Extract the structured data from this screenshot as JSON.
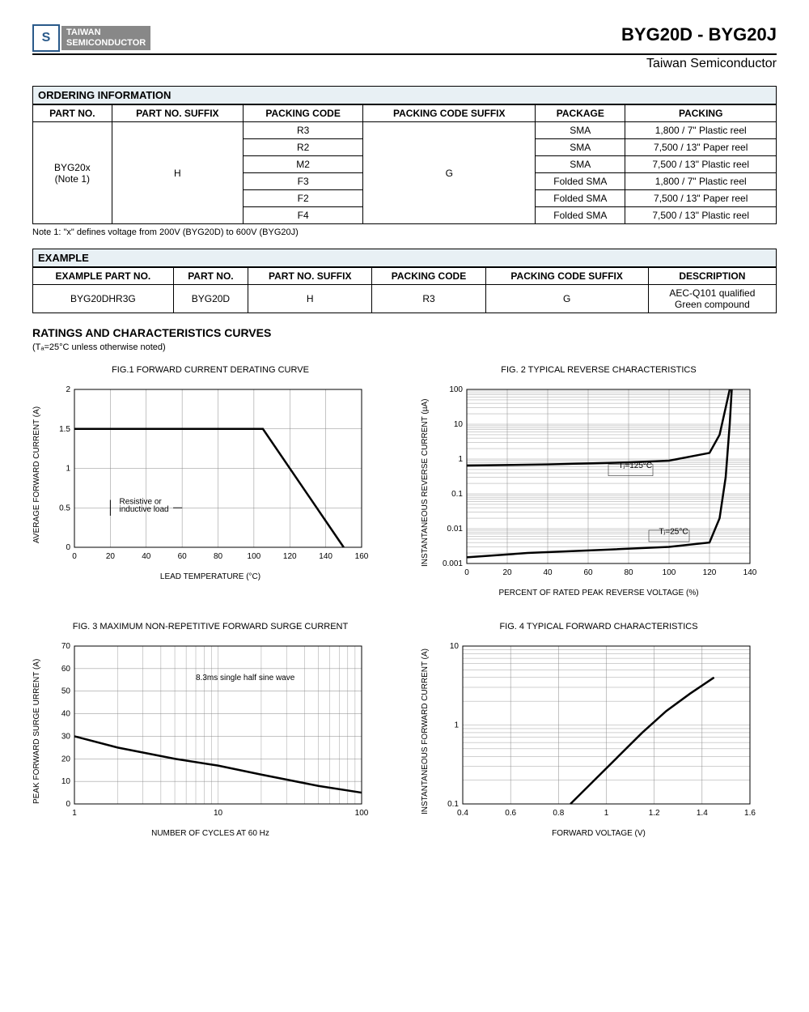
{
  "header": {
    "logo_top": "TAIWAN",
    "logo_bottom": "SEMICONDUCTOR",
    "part_range": "BYG20D - BYG20J",
    "company": "Taiwan Semiconductor"
  },
  "ordering": {
    "title": "ORDERING INFORMATION",
    "headers": [
      "PART NO.",
      "PART NO. SUFFIX",
      "PACKING CODE",
      "PACKING CODE SUFFIX",
      "PACKAGE",
      "PACKING"
    ],
    "part_no": "BYG20x",
    "part_note": "(Note 1)",
    "suffix": "H",
    "code_suffix": "G",
    "rows": [
      {
        "code": "R3",
        "pkg": "SMA",
        "pack": "1,800 / 7\" Plastic reel"
      },
      {
        "code": "R2",
        "pkg": "SMA",
        "pack": "7,500 / 13\" Paper reel"
      },
      {
        "code": "M2",
        "pkg": "SMA",
        "pack": "7,500 / 13\" Plastic reel"
      },
      {
        "code": "F3",
        "pkg": "Folded SMA",
        "pack": "1,800 / 7\" Plastic reel"
      },
      {
        "code": "F2",
        "pkg": "Folded SMA",
        "pack": "7,500 / 13\" Paper reel"
      },
      {
        "code": "F4",
        "pkg": "Folded SMA",
        "pack": "7,500 / 13\" Plastic reel"
      }
    ],
    "note": "Note 1: \"x\" defines voltage from 200V (BYG20D) to 600V (BYG20J)"
  },
  "example": {
    "title": "EXAMPLE",
    "headers": [
      "EXAMPLE PART NO.",
      "PART NO.",
      "PART NO. SUFFIX",
      "PACKING CODE",
      "PACKING CODE SUFFIX",
      "DESCRIPTION"
    ],
    "row": {
      "ex": "BYG20DHR3G",
      "pn": "BYG20D",
      "suf": "H",
      "pc": "R3",
      "pcs": "G",
      "desc1": "AEC-Q101 qualified",
      "desc2": "Green compound"
    }
  },
  "ratings": {
    "title": "RATINGS AND CHARACTERISTICS CURVES",
    "sub": "(Tₐ=25°C unless otherwise noted)"
  },
  "fig1": {
    "title": "FIG.1 FORWARD CURRENT DERATING CURVE",
    "xlabel": "LEAD TEMPERATURE (°C)",
    "ylabel": "AVERAGE FORWARD CURRENT (A)",
    "xlim": [
      0,
      160
    ],
    "ylim": [
      0,
      2
    ],
    "xticks": [
      0,
      20,
      40,
      60,
      80,
      100,
      120,
      140,
      160
    ],
    "yticks": [
      0,
      0.5,
      1,
      1.5,
      2
    ],
    "annotation": "Resistive or inductive load",
    "line": [
      [
        0,
        1.5
      ],
      [
        105,
        1.5
      ],
      [
        150,
        0
      ]
    ],
    "line_color": "#000",
    "line_width": 2.5,
    "grid_color": "#888"
  },
  "fig2": {
    "title": "FIG. 2 TYPICAL REVERSE CHARACTERISTICS",
    "xlabel": "PERCENT OF RATED PEAK REVERSE VOLTAGE (%)",
    "ylabel": "INSTANTANEOUS REVERSE CURRENT (µA)",
    "xlim": [
      0,
      140
    ],
    "ylog": [
      0.001,
      100
    ],
    "xticks": [
      0,
      20,
      40,
      60,
      80,
      100,
      120,
      140
    ],
    "ydecades": [
      0.001,
      0.01,
      0.1,
      1,
      10,
      100
    ],
    "label125": "Tⱼ=125°C",
    "label25": "Tⱼ=25°C",
    "curve125": [
      [
        0,
        0.65
      ],
      [
        40,
        0.7
      ],
      [
        80,
        0.8
      ],
      [
        100,
        0.9
      ],
      [
        120,
        1.5
      ],
      [
        125,
        5
      ],
      [
        128,
        30
      ],
      [
        130,
        100
      ]
    ],
    "curve25": [
      [
        0,
        0.0015
      ],
      [
        30,
        0.002
      ],
      [
        70,
        0.0025
      ],
      [
        100,
        0.003
      ],
      [
        120,
        0.004
      ],
      [
        125,
        0.02
      ],
      [
        128,
        0.3
      ],
      [
        130,
        10
      ],
      [
        131,
        100
      ]
    ],
    "line_color": "#000",
    "line_width": 2.5
  },
  "fig3": {
    "title": "FIG. 3 MAXIMUM  NON-REPETITIVE FORWARD SURGE CURRENT",
    "xlabel": "NUMBER OF CYCLES AT 60 Hz",
    "ylabel": "PEAK FORWARD SURGE URRENT (A)",
    "xlog": [
      1,
      100
    ],
    "ylim": [
      0,
      70
    ],
    "yticks": [
      0,
      10,
      20,
      30,
      40,
      50,
      60,
      70
    ],
    "annotation": "8.3ms single half sine wave",
    "curve": [
      [
        1,
        30
      ],
      [
        2,
        25
      ],
      [
        5,
        20
      ],
      [
        10,
        17
      ],
      [
        20,
        13
      ],
      [
        50,
        8
      ],
      [
        100,
        5
      ]
    ],
    "line_color": "#000",
    "line_width": 2.5
  },
  "fig4": {
    "title": "FIG. 4 TYPICAL FORWARD CHARACTERISTICS",
    "xlabel": "FORWARD VOLTAGE (V)",
    "ylabel": "INSTANTANEOUS FORWARD CURRENT (A)",
    "xlim": [
      0.4,
      1.6
    ],
    "ylog": [
      0.1,
      10
    ],
    "xticks": [
      0.4,
      0.6,
      0.8,
      1,
      1.2,
      1.4,
      1.6
    ],
    "ydecades": [
      0.1,
      1,
      10
    ],
    "curve": [
      [
        0.85,
        0.1
      ],
      [
        0.95,
        0.2
      ],
      [
        1.05,
        0.4
      ],
      [
        1.15,
        0.8
      ],
      [
        1.25,
        1.5
      ],
      [
        1.35,
        2.5
      ],
      [
        1.45,
        4
      ]
    ],
    "line_color": "#000",
    "line_width": 2.5
  }
}
